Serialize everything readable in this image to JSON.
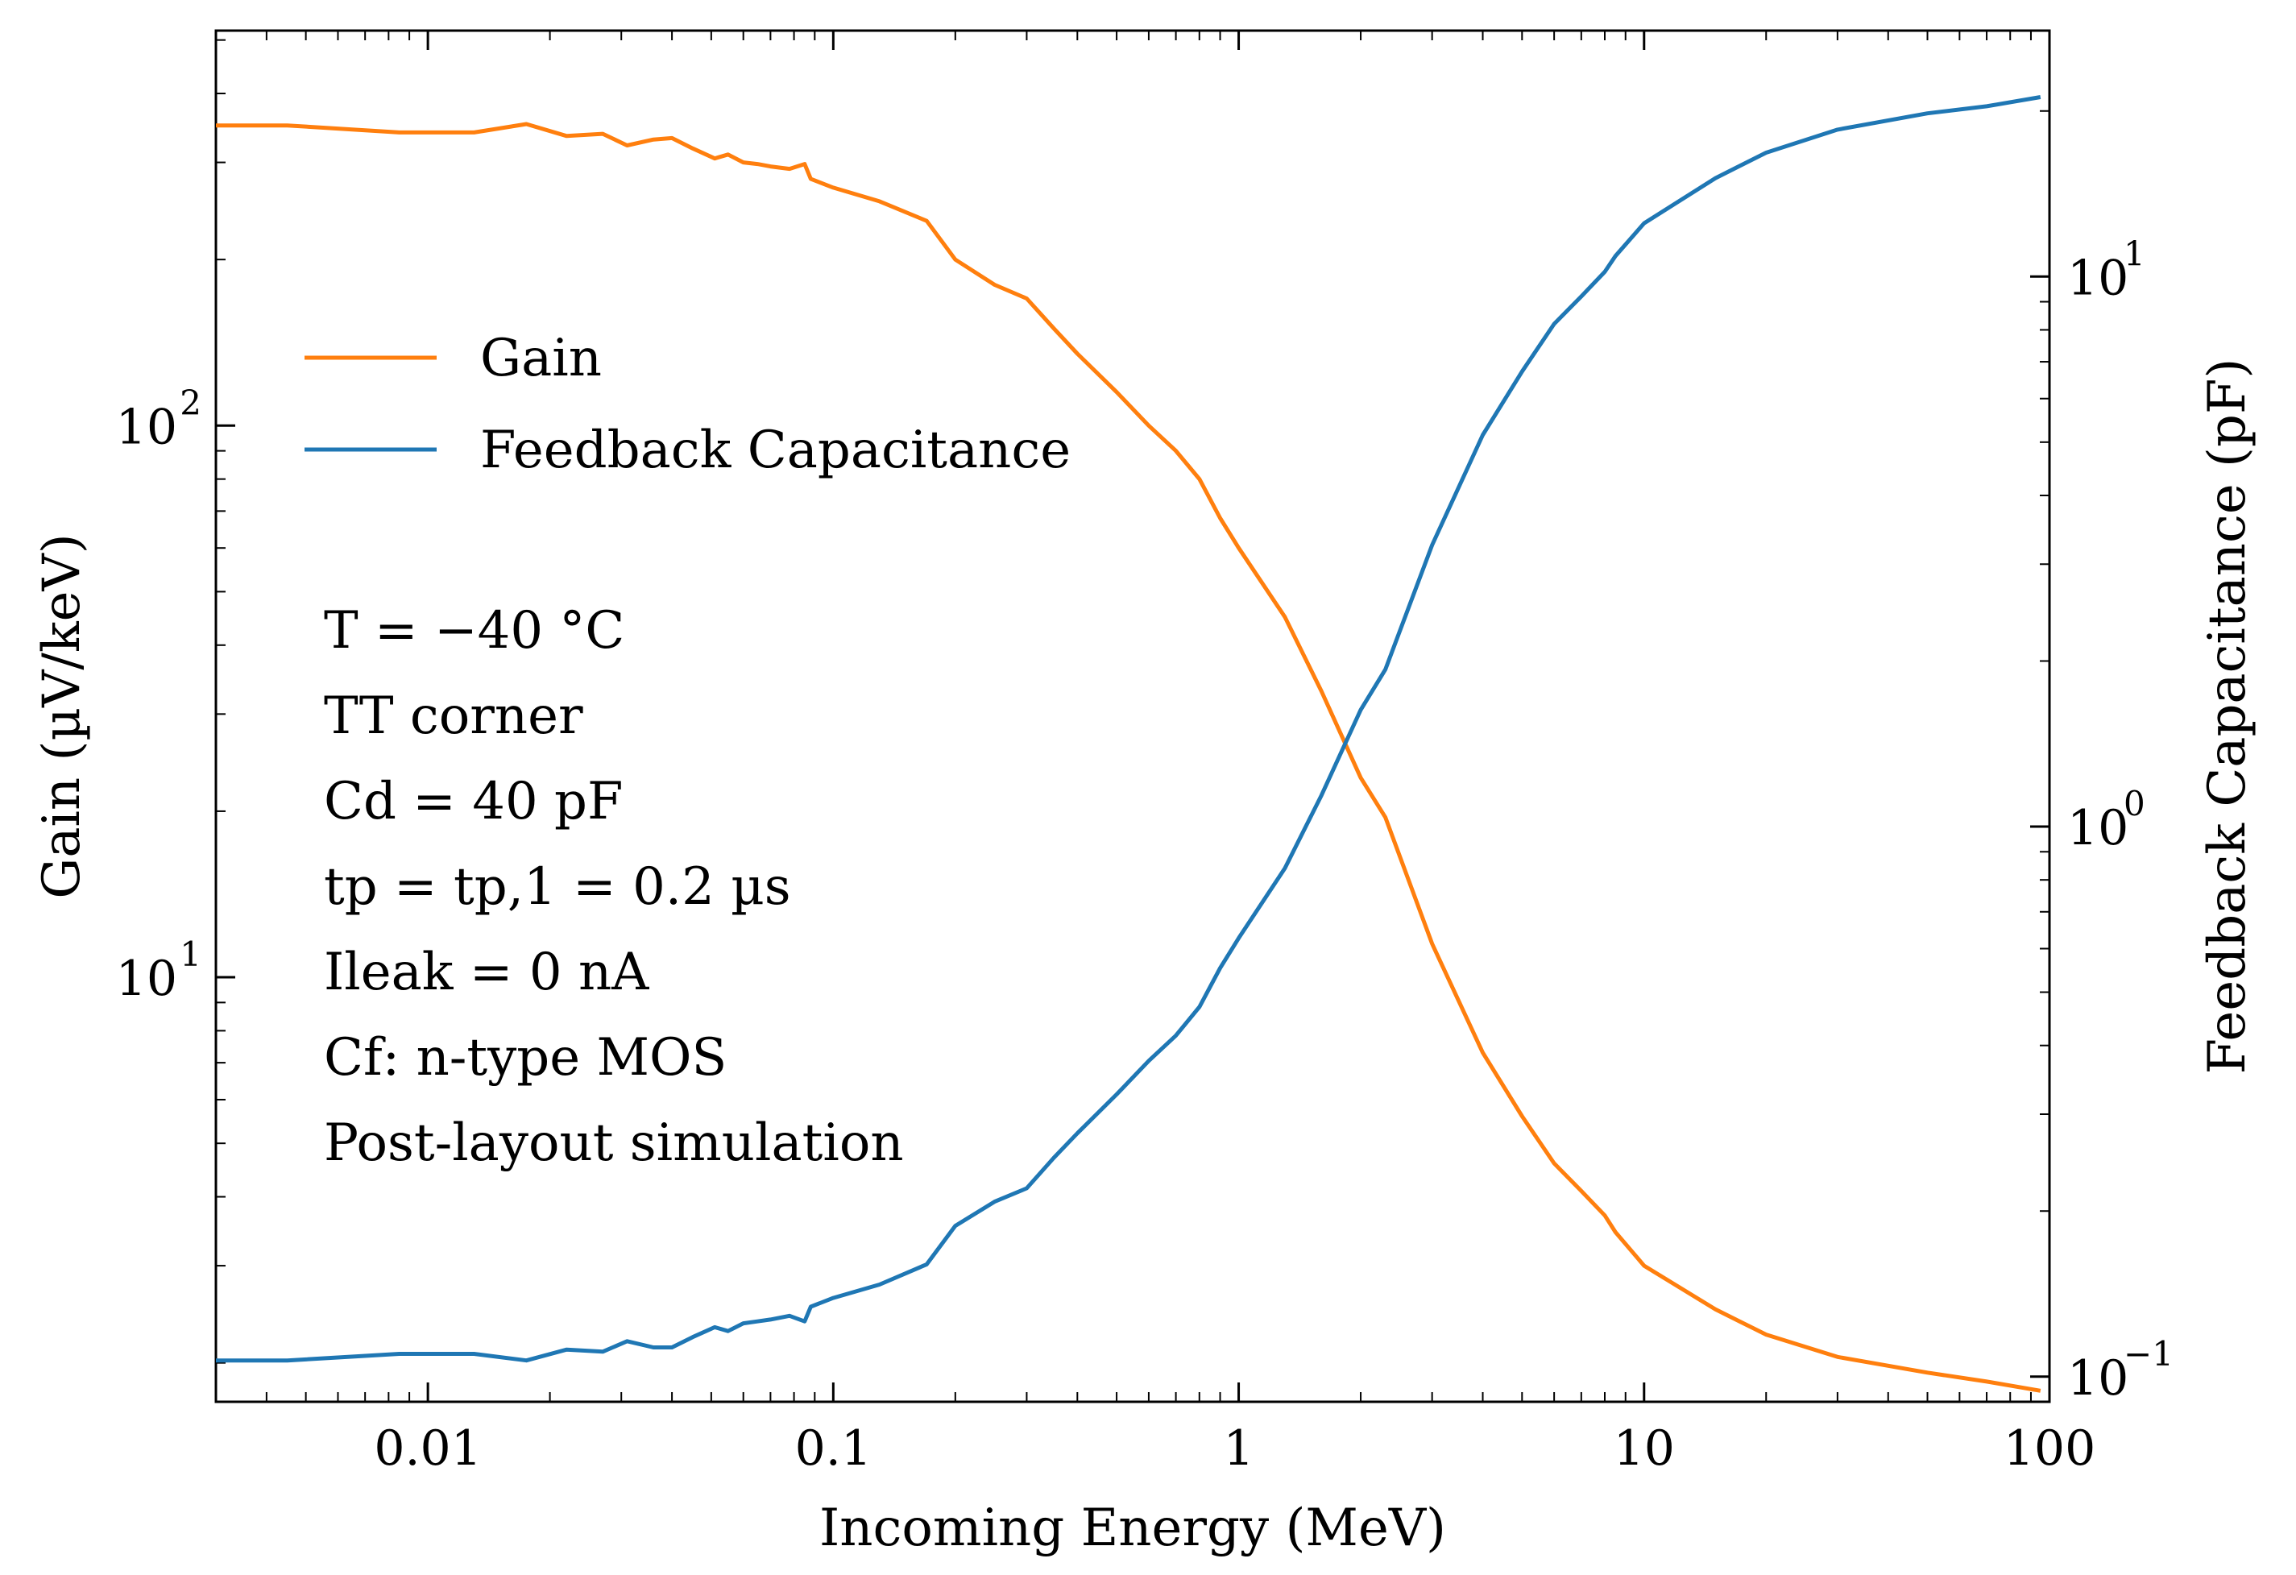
{
  "chart_data": {
    "type": "line",
    "xscale": "log",
    "xlabel": "Incoming Energy (MeV)",
    "ylabel_left": "Gain (µV/keV)",
    "ylabel_right": "Feedback Capacitance (pF)",
    "xlim": [
      0.003,
      100
    ],
    "ylim_left": [
      1.7,
      520
    ],
    "ylim_right": [
      0.09,
      28
    ],
    "x_ticks": [
      {
        "value": 0.01,
        "label": "0.01"
      },
      {
        "value": 0.1,
        "label": "0.1"
      },
      {
        "value": 1,
        "label": "1"
      },
      {
        "value": 10,
        "label": "10"
      },
      {
        "value": 100,
        "label": "100"
      }
    ],
    "y_left_ticks": [
      {
        "value": 10,
        "base": "10",
        "exp": "1"
      },
      {
        "value": 100,
        "base": "10",
        "exp": "2"
      }
    ],
    "y_right_ticks": [
      {
        "value": 0.1,
        "base": "10",
        "exp": "−1"
      },
      {
        "value": 1,
        "base": "10",
        "exp": "0"
      },
      {
        "value": 10,
        "base": "10",
        "exp": "1"
      }
    ],
    "legend": [
      {
        "label": "Gain",
        "color": "#ff7f0e"
      },
      {
        "label": "Feedback Capacitance",
        "color": "#1f77b4"
      }
    ],
    "annotations": [
      "T = −40 °C",
      "TT corner",
      "Cd = 40 pF",
      "tp = tp,1 = 0.2 µs",
      "Ileak = 0 nA",
      "Cf: n-type MOS",
      "Post-layout simulation"
    ],
    "series": [
      {
        "name": "Gain",
        "axis": "left",
        "color": "#ff7f0e",
        "x": [
          0.003,
          0.0045,
          0.0085,
          0.013,
          0.0175,
          0.022,
          0.027,
          0.031,
          0.036,
          0.04,
          0.045,
          0.051,
          0.055,
          0.06,
          0.065,
          0.07,
          0.078,
          0.085,
          0.088,
          0.1,
          0.13,
          0.17,
          0.2,
          0.25,
          0.3,
          0.35,
          0.4,
          0.5,
          0.6,
          0.7,
          0.8,
          0.9,
          1.0,
          1.3,
          1.6,
          2.0,
          2.3,
          3.0,
          4.0,
          5.0,
          6.0,
          7.0,
          8.0,
          8.5,
          10,
          15,
          20,
          30,
          50,
          70,
          95
        ],
        "values": [
          350,
          350,
          340,
          340,
          352,
          335,
          338,
          322,
          330,
          332,
          318,
          305,
          310,
          300,
          298,
          295,
          292,
          298,
          280,
          270,
          255,
          235,
          200,
          180,
          170,
          150,
          135,
          115,
          100,
          90,
          80,
          68,
          60,
          45,
          33,
          23,
          19.5,
          11.5,
          7.3,
          5.6,
          4.6,
          4.1,
          3.7,
          3.45,
          3.0,
          2.5,
          2.25,
          2.05,
          1.92,
          1.85,
          1.78
        ]
      },
      {
        "name": "Feedback Capacitance",
        "axis": "right",
        "color": "#1f77b4",
        "x": [
          0.003,
          0.0045,
          0.0085,
          0.013,
          0.0175,
          0.022,
          0.027,
          0.031,
          0.036,
          0.04,
          0.045,
          0.051,
          0.055,
          0.06,
          0.065,
          0.07,
          0.078,
          0.085,
          0.088,
          0.1,
          0.13,
          0.17,
          0.2,
          0.25,
          0.3,
          0.35,
          0.4,
          0.5,
          0.6,
          0.7,
          0.8,
          0.9,
          1.0,
          1.3,
          1.6,
          2.0,
          2.3,
          3.0,
          4.0,
          5.0,
          6.0,
          7.0,
          8.0,
          8.5,
          10,
          15,
          20,
          30,
          50,
          70,
          95
        ],
        "values": [
          0.107,
          0.107,
          0.11,
          0.11,
          0.107,
          0.112,
          0.111,
          0.116,
          0.113,
          0.113,
          0.118,
          0.123,
          0.121,
          0.125,
          0.126,
          0.127,
          0.129,
          0.126,
          0.134,
          0.139,
          0.147,
          0.16,
          0.188,
          0.208,
          0.22,
          0.25,
          0.277,
          0.326,
          0.375,
          0.417,
          0.47,
          0.553,
          0.627,
          0.84,
          1.14,
          1.63,
          1.93,
          3.25,
          5.15,
          6.72,
          8.2,
          9.2,
          10.2,
          10.9,
          12.5,
          15.1,
          16.8,
          18.5,
          19.8,
          20.4,
          21.2
        ]
      }
    ]
  }
}
